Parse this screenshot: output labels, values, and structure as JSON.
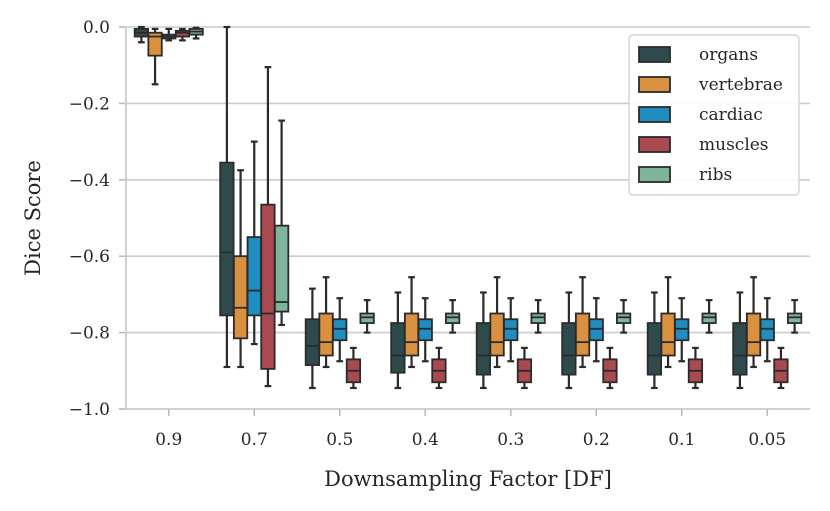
{
  "chart_data": {
    "type": "boxplot",
    "xlabel": "Downsampling Factor [DF]",
    "ylabel": "Dice Score",
    "ylim": [
      -1.0,
      0.0
    ],
    "yticks": [
      0.0,
      -0.2,
      -0.4,
      -0.6,
      -0.8,
      -1.0
    ],
    "ytick_labels": [
      "0.0",
      "−0.2",
      "−0.4",
      "−0.6",
      "−0.8",
      "−1.0"
    ],
    "grid": "horizontal",
    "legend_position": "top-right",
    "categories": [
      "0.9",
      "0.7",
      "0.5",
      "0.4",
      "0.3",
      "0.2",
      "0.1",
      "0.05"
    ],
    "series": [
      {
        "name": "organs",
        "color": "#2f4a4d",
        "boxes": [
          {
            "whislo": -0.04,
            "q1": -0.025,
            "med": -0.015,
            "q3": -0.005,
            "whishi": 0.0
          },
          {
            "whislo": -0.89,
            "q1": -0.755,
            "med": -0.59,
            "q3": -0.355,
            "whishi": 0.0
          },
          {
            "whislo": -0.945,
            "q1": -0.885,
            "med": -0.835,
            "q3": -0.765,
            "whishi": -0.685
          },
          {
            "whislo": -0.945,
            "q1": -0.905,
            "med": -0.86,
            "q3": -0.775,
            "whishi": -0.695
          },
          {
            "whislo": -0.945,
            "q1": -0.91,
            "med": -0.86,
            "q3": -0.775,
            "whishi": -0.695
          },
          {
            "whislo": -0.945,
            "q1": -0.91,
            "med": -0.86,
            "q3": -0.775,
            "whishi": -0.695
          },
          {
            "whislo": -0.945,
            "q1": -0.91,
            "med": -0.86,
            "q3": -0.775,
            "whishi": -0.695
          },
          {
            "whislo": -0.945,
            "q1": -0.91,
            "med": -0.86,
            "q3": -0.775,
            "whishi": -0.695
          }
        ]
      },
      {
        "name": "vertebrae",
        "color": "#d9913f",
        "boxes": [
          {
            "whislo": -0.15,
            "q1": -0.075,
            "med": -0.025,
            "q3": -0.015,
            "whishi": -0.005
          },
          {
            "whislo": -0.89,
            "q1": -0.815,
            "med": -0.735,
            "q3": -0.6,
            "whishi": -0.375
          },
          {
            "whislo": -0.89,
            "q1": -0.86,
            "med": -0.825,
            "q3": -0.75,
            "whishi": -0.655
          },
          {
            "whislo": -0.89,
            "q1": -0.86,
            "med": -0.825,
            "q3": -0.75,
            "whishi": -0.655
          },
          {
            "whislo": -0.89,
            "q1": -0.86,
            "med": -0.825,
            "q3": -0.75,
            "whishi": -0.655
          },
          {
            "whislo": -0.89,
            "q1": -0.86,
            "med": -0.825,
            "q3": -0.75,
            "whishi": -0.655
          },
          {
            "whislo": -0.89,
            "q1": -0.86,
            "med": -0.825,
            "q3": -0.75,
            "whishi": -0.655
          },
          {
            "whislo": -0.89,
            "q1": -0.86,
            "med": -0.825,
            "q3": -0.75,
            "whishi": -0.655
          }
        ]
      },
      {
        "name": "cardiac",
        "color": "#1f8dc0",
        "boxes": [
          {
            "whislo": -0.035,
            "q1": -0.03,
            "med": -0.025,
            "q3": -0.02,
            "whishi": -0.005
          },
          {
            "whislo": -0.83,
            "q1": -0.755,
            "med": -0.69,
            "q3": -0.55,
            "whishi": -0.3
          },
          {
            "whislo": -0.875,
            "q1": -0.82,
            "med": -0.79,
            "q3": -0.765,
            "whishi": -0.71
          },
          {
            "whislo": -0.875,
            "q1": -0.82,
            "med": -0.79,
            "q3": -0.765,
            "whishi": -0.71
          },
          {
            "whislo": -0.875,
            "q1": -0.82,
            "med": -0.79,
            "q3": -0.765,
            "whishi": -0.71
          },
          {
            "whislo": -0.875,
            "q1": -0.82,
            "med": -0.79,
            "q3": -0.765,
            "whishi": -0.71
          },
          {
            "whislo": -0.875,
            "q1": -0.82,
            "med": -0.79,
            "q3": -0.765,
            "whishi": -0.71
          },
          {
            "whislo": -0.875,
            "q1": -0.82,
            "med": -0.79,
            "q3": -0.765,
            "whishi": -0.71
          }
        ]
      },
      {
        "name": "muscles",
        "color": "#a84a4f",
        "boxes": [
          {
            "whislo": -0.035,
            "q1": -0.025,
            "med": -0.015,
            "q3": -0.01,
            "whishi": -0.005
          },
          {
            "whislo": -0.94,
            "q1": -0.895,
            "med": -0.75,
            "q3": -0.465,
            "whishi": -0.105
          },
          {
            "whislo": -0.945,
            "q1": -0.93,
            "med": -0.9,
            "q3": -0.87,
            "whishi": -0.84
          },
          {
            "whislo": -0.945,
            "q1": -0.93,
            "med": -0.9,
            "q3": -0.87,
            "whishi": -0.84
          },
          {
            "whislo": -0.945,
            "q1": -0.93,
            "med": -0.9,
            "q3": -0.87,
            "whishi": -0.84
          },
          {
            "whislo": -0.945,
            "q1": -0.93,
            "med": -0.9,
            "q3": -0.87,
            "whishi": -0.84
          },
          {
            "whislo": -0.945,
            "q1": -0.93,
            "med": -0.9,
            "q3": -0.87,
            "whishi": -0.84
          },
          {
            "whislo": -0.945,
            "q1": -0.93,
            "med": -0.9,
            "q3": -0.87,
            "whishi": -0.84
          }
        ]
      },
      {
        "name": "ribs",
        "color": "#7fb59a",
        "boxes": [
          {
            "whislo": -0.03,
            "q1": -0.02,
            "med": -0.012,
            "q3": -0.005,
            "whishi": -0.002
          },
          {
            "whislo": -0.78,
            "q1": -0.745,
            "med": -0.72,
            "q3": -0.52,
            "whishi": -0.245
          },
          {
            "whislo": -0.8,
            "q1": -0.775,
            "med": -0.76,
            "q3": -0.75,
            "whishi": -0.715
          },
          {
            "whislo": -0.8,
            "q1": -0.775,
            "med": -0.76,
            "q3": -0.75,
            "whishi": -0.715
          },
          {
            "whislo": -0.8,
            "q1": -0.775,
            "med": -0.76,
            "q3": -0.75,
            "whishi": -0.715
          },
          {
            "whislo": -0.8,
            "q1": -0.775,
            "med": -0.76,
            "q3": -0.75,
            "whishi": -0.715
          },
          {
            "whislo": -0.8,
            "q1": -0.775,
            "med": -0.76,
            "q3": -0.75,
            "whishi": -0.715
          },
          {
            "whislo": -0.8,
            "q1": -0.775,
            "med": -0.76,
            "q3": -0.75,
            "whishi": -0.715
          }
        ]
      }
    ]
  }
}
